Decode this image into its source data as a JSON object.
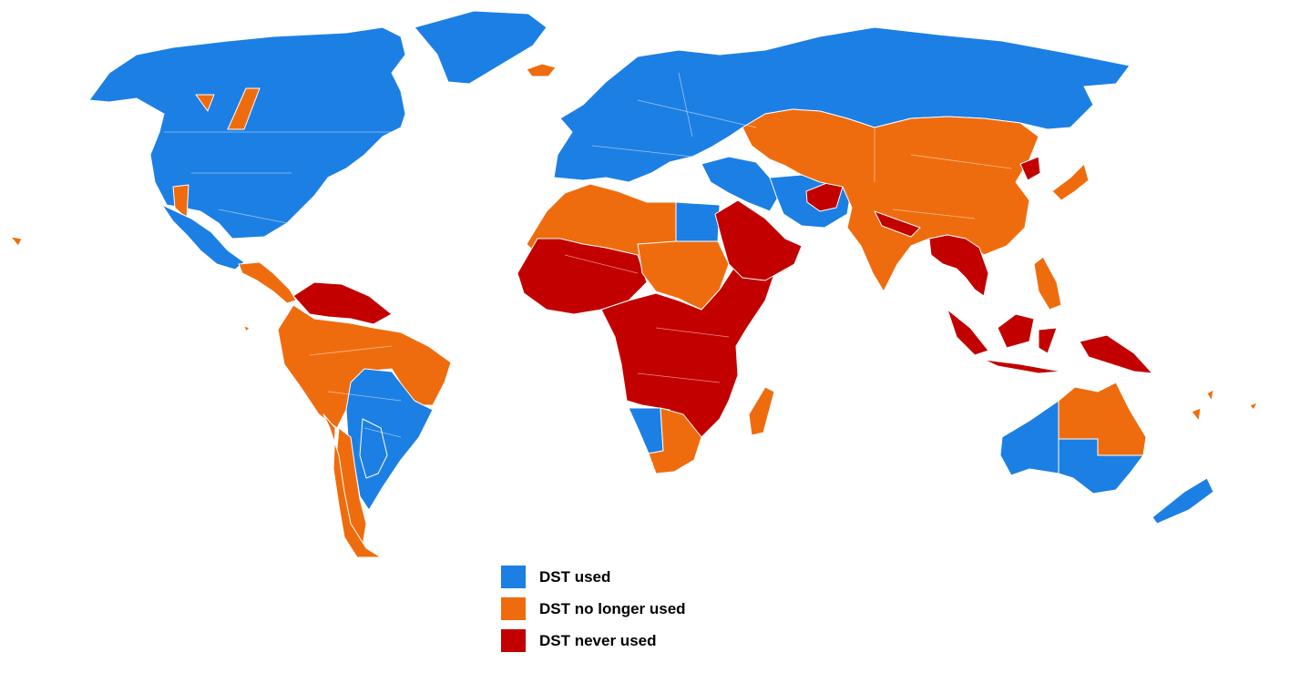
{
  "legend": {
    "items": [
      {
        "key": "used",
        "label": "DST used",
        "color": "#1c7fe4"
      },
      {
        "key": "no_longer_used",
        "label": "DST no longer used",
        "color": "#ef6c0e"
      },
      {
        "key": "never_used",
        "label": "DST never used",
        "color": "#c30000"
      }
    ]
  },
  "map": {
    "background": "#ffffff",
    "border_color": "#ffffff",
    "category_colors": {
      "used": "#1c7fe4",
      "no_longer_used": "#ef6c0e",
      "never_used": "#c30000"
    },
    "regions": [
      {
        "id": "alaska-canada-usa",
        "category": "used"
      },
      {
        "id": "greenland",
        "category": "used"
      },
      {
        "id": "iceland",
        "category": "no_longer_used"
      },
      {
        "id": "saskatchewan",
        "category": "no_longer_used"
      },
      {
        "id": "arizona",
        "category": "no_longer_used"
      },
      {
        "id": "mexico",
        "category": "used"
      },
      {
        "id": "central-america",
        "category": "no_longer_used"
      },
      {
        "id": "venezuela-guianas",
        "category": "never_used"
      },
      {
        "id": "south-america-north",
        "category": "no_longer_used"
      },
      {
        "id": "brazil-south",
        "category": "used"
      },
      {
        "id": "argentina",
        "category": "no_longer_used"
      },
      {
        "id": "chile",
        "category": "no_longer_used"
      },
      {
        "id": "paraguay-uruguay",
        "category": "used"
      },
      {
        "id": "europe-russia",
        "category": "used"
      },
      {
        "id": "north-africa",
        "category": "no_longer_used"
      },
      {
        "id": "egypt",
        "category": "used"
      },
      {
        "id": "west-africa",
        "category": "never_used"
      },
      {
        "id": "sudan",
        "category": "no_longer_used"
      },
      {
        "id": "central-east-africa",
        "category": "never_used"
      },
      {
        "id": "namibia",
        "category": "used"
      },
      {
        "id": "southern-africa",
        "category": "no_longer_used"
      },
      {
        "id": "madagascar",
        "category": "no_longer_used"
      },
      {
        "id": "arabian-peninsula",
        "category": "never_used"
      },
      {
        "id": "middle-east",
        "category": "used"
      },
      {
        "id": "iran",
        "category": "used"
      },
      {
        "id": "afghanistan",
        "category": "never_used"
      },
      {
        "id": "central-asia-china-india",
        "category": "no_longer_used"
      },
      {
        "id": "north-korea",
        "category": "never_used"
      },
      {
        "id": "japan",
        "category": "no_longer_used"
      },
      {
        "id": "southeast-asia",
        "category": "never_used"
      },
      {
        "id": "philippines",
        "category": "no_longer_used"
      },
      {
        "id": "indonesia",
        "category": "never_used"
      },
      {
        "id": "papua-new-guinea",
        "category": "never_used"
      },
      {
        "id": "australia-west",
        "category": "used"
      },
      {
        "id": "australia-north",
        "category": "no_longer_used"
      },
      {
        "id": "australia-southeast",
        "category": "used"
      },
      {
        "id": "new-zealand",
        "category": "used"
      },
      {
        "id": "pacific-islands",
        "category": "no_longer_used"
      }
    ]
  }
}
